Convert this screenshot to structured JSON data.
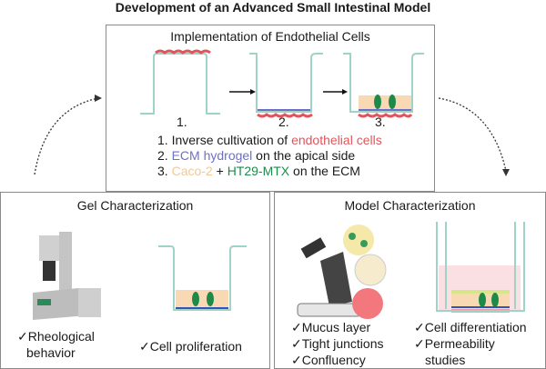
{
  "title": "Development of an Advanced Small Intestinal Model",
  "top": {
    "heading": "Implementation of Endothelial Cells",
    "step_labels": [
      "1.",
      "2.",
      "3."
    ],
    "steps": [
      {
        "prefix": "1. Inverse cultivation of ",
        "highlight": "endothelial cells",
        "suffix": ""
      },
      {
        "prefix": "2. ",
        "highlight": "ECM hydrogel",
        "suffix": " on the apical side"
      },
      {
        "prefix": "3. ",
        "highlight": "Caco-2",
        "mid": " + ",
        "highlight2": "HT29-MTX",
        "suffix": " on the ECM"
      }
    ]
  },
  "gel": {
    "heading": "Gel Characterization",
    "items": [
      "✓Rheological",
      "behavior",
      "✓Cell proliferation"
    ]
  },
  "model": {
    "heading": "Model Characterization",
    "left_items": [
      "✓Mucus layer",
      "✓Tight junctions",
      "✓Confluency"
    ],
    "right_items": [
      "✓Cell differentiation",
      "✓Permeability",
      "studies"
    ]
  },
  "colors": {
    "endothelial": "#e0555c",
    "ecm": "#6f6fc8",
    "caco2": "#f0c89a",
    "ht29": "#1d8a4a",
    "insert": "#9fd3c7"
  }
}
